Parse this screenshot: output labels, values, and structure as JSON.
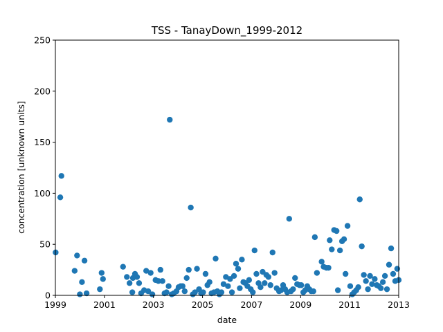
{
  "chart_data": {
    "type": "scatter",
    "title": "TSS - TanayDown_1999-2012",
    "xlabel": "date",
    "ylabel": "concentration [unknown units]",
    "xlim": [
      "1999-01-01",
      "2013-01-01"
    ],
    "ylim": [
      0,
      250
    ],
    "x_ticks": [
      "1999",
      "2001",
      "2003",
      "2005",
      "2007",
      "2009",
      "2011",
      "2013"
    ],
    "y_ticks": [
      "0",
      "50",
      "100",
      "150",
      "200",
      "250"
    ],
    "grid": false,
    "marker_color": "#1f77b4",
    "points": [
      [
        "1999-01-05",
        42
      ],
      [
        "1999-03-15",
        96
      ],
      [
        "1999-04-01",
        117
      ],
      [
        "1999-10-15",
        24
      ],
      [
        "1999-11-20",
        39
      ],
      [
        "2000-01-01",
        1
      ],
      [
        "2000-02-01",
        13
      ],
      [
        "2000-03-10",
        34
      ],
      [
        "2000-04-10",
        2
      ],
      [
        "2000-10-25",
        6
      ],
      [
        "2000-11-20",
        22
      ],
      [
        "2000-12-10",
        16
      ],
      [
        "2001-10-05",
        28
      ],
      [
        "2001-12-01",
        18
      ],
      [
        "2002-01-10",
        12
      ],
      [
        "2002-02-20",
        3
      ],
      [
        "2002-03-01",
        17
      ],
      [
        "2002-04-01",
        21
      ],
      [
        "2002-05-01",
        18
      ],
      [
        "2002-06-01",
        12
      ],
      [
        "2002-07-01",
        2
      ],
      [
        "2002-08-15",
        5
      ],
      [
        "2002-09-15",
        24
      ],
      [
        "2002-10-15",
        4
      ],
      [
        "2002-11-20",
        22
      ],
      [
        "2002-12-15",
        1
      ],
      [
        "2003-02-01",
        15
      ],
      [
        "2003-03-15",
        14
      ],
      [
        "2003-04-15",
        25
      ],
      [
        "2003-05-15",
        14
      ],
      [
        "2003-06-15",
        2
      ],
      [
        "2003-07-15",
        3
      ],
      [
        "2003-08-15",
        9
      ],
      [
        "2003-09-01",
        172
      ],
      [
        "2003-10-01",
        1
      ],
      [
        "2003-11-01",
        2
      ],
      [
        "2003-12-10",
        4
      ],
      [
        "2004-01-10",
        8
      ],
      [
        "2004-02-10",
        9
      ],
      [
        "2004-03-10",
        9
      ],
      [
        "2004-04-10",
        4
      ],
      [
        "2004-05-10",
        17
      ],
      [
        "2004-06-10",
        25
      ],
      [
        "2004-07-10",
        86
      ],
      [
        "2004-08-10",
        1
      ],
      [
        "2004-09-10",
        3
      ],
      [
        "2004-10-10",
        26
      ],
      [
        "2004-11-10",
        6
      ],
      [
        "2004-12-10",
        2
      ],
      [
        "2005-01-10",
        3
      ],
      [
        "2005-02-15",
        21
      ],
      [
        "2005-03-15",
        10
      ],
      [
        "2005-04-15",
        13
      ],
      [
        "2005-05-15",
        2
      ],
      [
        "2005-06-20",
        3
      ],
      [
        "2005-07-15",
        36
      ],
      [
        "2005-08-10",
        4
      ],
      [
        "2005-09-10",
        1
      ],
      [
        "2005-10-10",
        3
      ],
      [
        "2005-11-10",
        11
      ],
      [
        "2005-12-15",
        18
      ],
      [
        "2006-01-15",
        9
      ],
      [
        "2006-02-15",
        16
      ],
      [
        "2006-03-15",
        3
      ],
      [
        "2006-04-15",
        19
      ],
      [
        "2006-05-15",
        31
      ],
      [
        "2006-06-15",
        26
      ],
      [
        "2006-07-10",
        7
      ],
      [
        "2006-08-10",
        35
      ],
      [
        "2006-09-01",
        13
      ],
      [
        "2006-10-01",
        12
      ],
      [
        "2006-11-01",
        9
      ],
      [
        "2006-11-25",
        15
      ],
      [
        "2006-12-20",
        6
      ],
      [
        "2007-01-20",
        3
      ],
      [
        "2007-02-15",
        44
      ],
      [
        "2007-03-15",
        21
      ],
      [
        "2007-04-15",
        12
      ],
      [
        "2007-05-15",
        8
      ],
      [
        "2007-06-15",
        23
      ],
      [
        "2007-07-15",
        12
      ],
      [
        "2007-08-10",
        20
      ],
      [
        "2007-09-10",
        18
      ],
      [
        "2007-10-10",
        10
      ],
      [
        "2007-11-10",
        42
      ],
      [
        "2007-12-10",
        22
      ],
      [
        "2008-01-10",
        7
      ],
      [
        "2008-02-15",
        4
      ],
      [
        "2008-03-15",
        5
      ],
      [
        "2008-04-15",
        10
      ],
      [
        "2008-05-15",
        6
      ],
      [
        "2008-06-15",
        3
      ],
      [
        "2008-07-15",
        75
      ],
      [
        "2008-08-10",
        4
      ],
      [
        "2008-09-10",
        6
      ],
      [
        "2008-10-10",
        17
      ],
      [
        "2008-11-10",
        11
      ],
      [
        "2008-12-15",
        10
      ],
      [
        "2009-01-10",
        10
      ],
      [
        "2009-02-10",
        3
      ],
      [
        "2009-03-10",
        5
      ],
      [
        "2009-04-10",
        9
      ],
      [
        "2009-05-10",
        6
      ],
      [
        "2009-06-10",
        4
      ],
      [
        "2009-07-10",
        4
      ],
      [
        "2009-08-01",
        57
      ],
      [
        "2009-09-01",
        22
      ],
      [
        "2009-11-10",
        33
      ],
      [
        "2009-12-10",
        28
      ],
      [
        "2010-01-20",
        27
      ],
      [
        "2010-02-20",
        27
      ],
      [
        "2010-03-10",
        54
      ],
      [
        "2010-04-10",
        45
      ],
      [
        "2010-05-15",
        64
      ],
      [
        "2010-06-20",
        63
      ],
      [
        "2010-07-10",
        5
      ],
      [
        "2010-08-10",
        44
      ],
      [
        "2010-09-10",
        53
      ],
      [
        "2010-10-10",
        55
      ],
      [
        "2010-11-01",
        21
      ],
      [
        "2010-12-01",
        68
      ],
      [
        "2011-01-10",
        9
      ],
      [
        "2011-02-10",
        1
      ],
      [
        "2011-03-10",
        3
      ],
      [
        "2011-04-10",
        5
      ],
      [
        "2011-05-10",
        8
      ],
      [
        "2011-06-01",
        94
      ],
      [
        "2011-07-01",
        48
      ],
      [
        "2011-08-01",
        20
      ],
      [
        "2011-09-01",
        14
      ],
      [
        "2011-10-01",
        6
      ],
      [
        "2011-11-01",
        19
      ],
      [
        "2011-12-01",
        11
      ],
      [
        "2012-01-10",
        16
      ],
      [
        "2012-02-10",
        10
      ],
      [
        "2012-03-10",
        9
      ],
      [
        "2012-04-10",
        7
      ],
      [
        "2012-05-10",
        13
      ],
      [
        "2012-06-10",
        19
      ],
      [
        "2012-07-10",
        6
      ],
      [
        "2012-08-10",
        30
      ],
      [
        "2012-09-10",
        46
      ],
      [
        "2012-10-10",
        21
      ],
      [
        "2012-11-10",
        14
      ],
      [
        "2012-12-10",
        26
      ],
      [
        "2013-01-01",
        15
      ]
    ]
  }
}
